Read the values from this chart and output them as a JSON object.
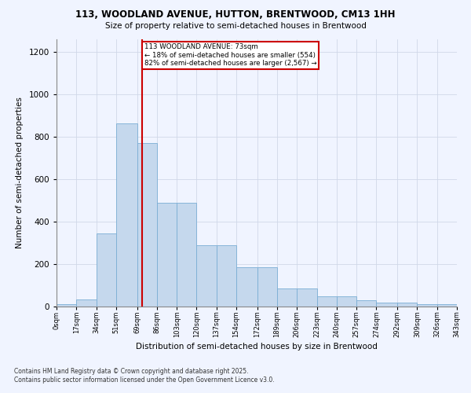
{
  "title_line1": "113, WOODLAND AVENUE, HUTTON, BRENTWOOD, CM13 1HH",
  "title_line2": "Size of property relative to semi-detached houses in Brentwood",
  "xlabel": "Distribution of semi-detached houses by size in Brentwood",
  "ylabel": "Number of semi-detached properties",
  "annotation_line1": "113 WOODLAND AVENUE: 73sqm",
  "annotation_line2": "← 18% of semi-detached houses are smaller (554)",
  "annotation_line3": "82% of semi-detached houses are larger (2,567) →",
  "bin_edges": [
    0,
    17,
    34,
    51,
    69,
    86,
    103,
    120,
    137,
    154,
    172,
    189,
    206,
    223,
    240,
    257,
    274,
    292,
    309,
    326,
    343
  ],
  "bar_heights": [
    10,
    35,
    345,
    865,
    770,
    490,
    490,
    290,
    290,
    185,
    185,
    85,
    85,
    50,
    50,
    30,
    20,
    20,
    10,
    10
  ],
  "bar_color": "#c5d8ed",
  "bar_edge_color": "#7aadd4",
  "property_size": 73,
  "red_line_color": "#cc0000",
  "annotation_box_color": "#cc0000",
  "background_color": "#f0f4ff",
  "grid_color": "#d0d8e8",
  "ylim": [
    0,
    1260
  ],
  "yticks": [
    0,
    200,
    400,
    600,
    800,
    1000,
    1200
  ],
  "footer_line1": "Contains HM Land Registry data © Crown copyright and database right 2025.",
  "footer_line2": "Contains public sector information licensed under the Open Government Licence v3.0."
}
